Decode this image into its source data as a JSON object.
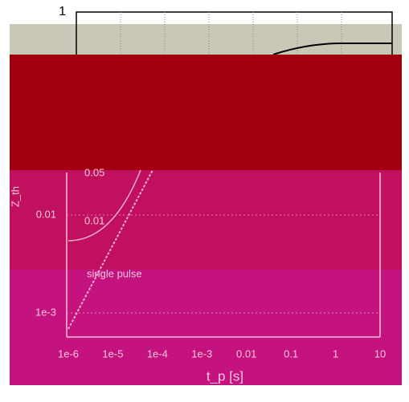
{
  "top_label": "1",
  "upper_annotation": "0.05",
  "y_axis_label": "Z_th",
  "y_tick_labels": [
    "0.01",
    "1e-3"
  ],
  "inner_annotation": "0.01",
  "curve_label": "single pulse",
  "x_tick_labels": [
    "1e-6",
    "1e-5",
    "1e-4",
    "1e-3",
    "0.01",
    "0.1",
    "1",
    "10"
  ],
  "x_axis_label": "t_p [s]"
}
